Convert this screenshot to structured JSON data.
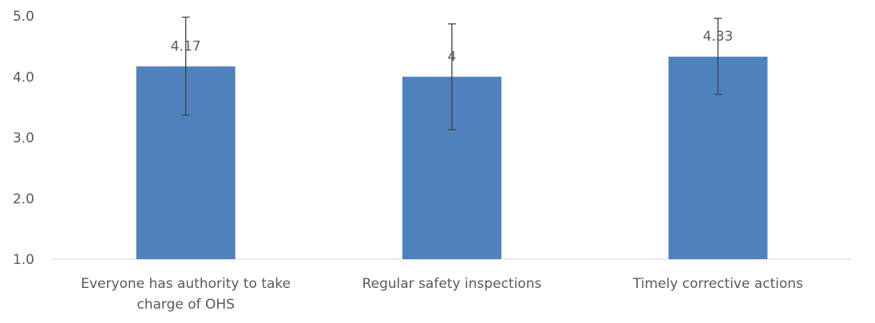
{
  "chart_data": {
    "type": "bar",
    "title": "",
    "xlabel": "",
    "ylabel": "",
    "ylim": [
      1.0,
      5.0
    ],
    "yticks": [
      "1.0",
      "2.0",
      "3.0",
      "4.0",
      "5.0"
    ],
    "grid": false,
    "legend": "none",
    "bar_color": "#4f81bd",
    "errorbar_color": "#404040",
    "axis_color": "#d9d9d9",
    "label_color": "#595959",
    "categories": [
      [
        "Everyone has authority to take",
        "charge of OHS"
      ],
      [
        "Regular safety inspections"
      ],
      [
        "Timely corrective actions"
      ]
    ],
    "values": [
      4.17,
      4.0,
      4.33
    ],
    "data_labels": [
      "4.17",
      "4",
      "4.33"
    ],
    "error_bars": [
      {
        "low": 3.37,
        "high": 4.98
      },
      {
        "low": 3.13,
        "high": 4.87
      },
      {
        "low": 3.71,
        "high": 4.96
      }
    ]
  }
}
